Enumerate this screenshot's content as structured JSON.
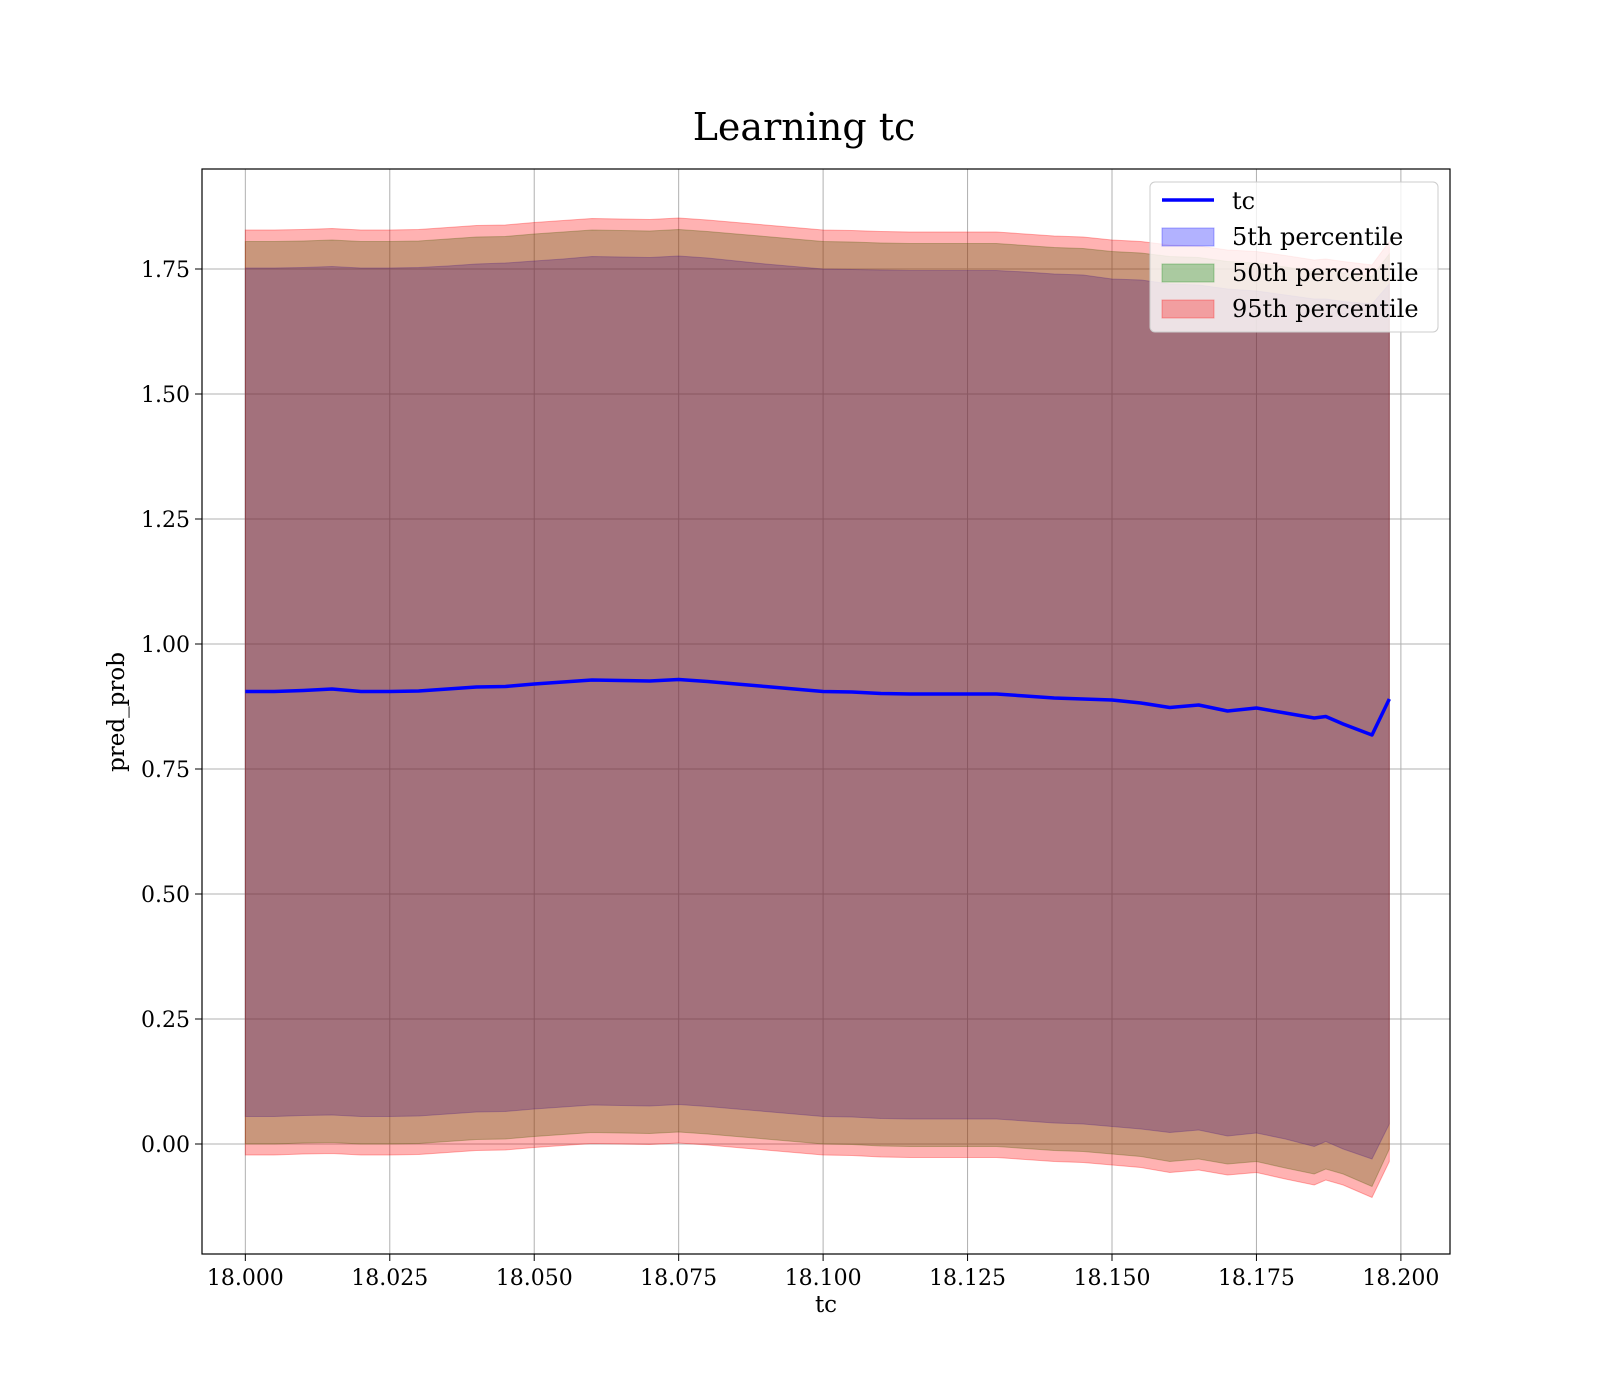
{
  "chart_data": {
    "type": "area",
    "title": "Learning tc",
    "xlabel": "tc",
    "ylabel": "pred_prob",
    "xlim": [
      17.9925,
      18.2085
    ],
    "ylim": [
      -0.22,
      1.95
    ],
    "x_ticks": [
      18.0,
      18.025,
      18.05,
      18.075,
      18.1,
      18.125,
      18.15,
      18.175,
      18.2
    ],
    "x_tick_labels": [
      "18.000",
      "18.025",
      "18.050",
      "18.075",
      "18.100",
      "18.125",
      "18.150",
      "18.175",
      "18.200"
    ],
    "y_ticks": [
      0.0,
      0.25,
      0.5,
      0.75,
      1.0,
      1.25,
      1.5,
      1.75
    ],
    "y_tick_labels": [
      "0.00",
      "0.25",
      "0.50",
      "0.75",
      "1.00",
      "1.25",
      "1.50",
      "1.75"
    ],
    "grid": true,
    "legend_position": "top-right",
    "x": [
      18.0,
      18.005,
      18.01,
      18.015,
      18.02,
      18.025,
      18.03,
      18.035,
      18.04,
      18.045,
      18.05,
      18.055,
      18.06,
      18.065,
      18.07,
      18.075,
      18.08,
      18.085,
      18.09,
      18.095,
      18.1,
      18.105,
      18.11,
      18.115,
      18.12,
      18.125,
      18.13,
      18.135,
      18.14,
      18.145,
      18.15,
      18.155,
      18.16,
      18.165,
      18.17,
      18.175,
      18.18,
      18.185,
      18.187,
      18.19,
      18.195,
      18.198
    ],
    "series": [
      {
        "name": "tc",
        "kind": "line",
        "color": "#0000ff",
        "values": [
          0.905,
          0.905,
          0.907,
          0.91,
          0.905,
          0.905,
          0.906,
          0.91,
          0.914,
          0.915,
          0.92,
          0.924,
          0.928,
          0.927,
          0.926,
          0.929,
          0.925,
          0.92,
          0.915,
          0.91,
          0.905,
          0.904,
          0.901,
          0.9,
          0.9,
          0.9,
          0.9,
          0.896,
          0.892,
          0.89,
          0.888,
          0.882,
          0.873,
          0.878,
          0.866,
          0.872,
          0.862,
          0.852,
          0.855,
          0.84,
          0.818,
          0.89
        ]
      },
      {
        "name": "5th percentile",
        "kind": "band",
        "color": "#0000ff",
        "lower": [
          0.055,
          0.055,
          0.057,
          0.058,
          0.055,
          0.055,
          0.056,
          0.06,
          0.064,
          0.065,
          0.07,
          0.074,
          0.078,
          0.077,
          0.076,
          0.079,
          0.075,
          0.07,
          0.065,
          0.06,
          0.055,
          0.054,
          0.051,
          0.05,
          0.05,
          0.05,
          0.05,
          0.046,
          0.042,
          0.04,
          0.035,
          0.03,
          0.023,
          0.028,
          0.016,
          0.022,
          0.01,
          -0.005,
          0.005,
          -0.01,
          -0.03,
          0.04
        ],
        "upper": [
          1.752,
          1.752,
          1.753,
          1.755,
          1.752,
          1.752,
          1.753,
          1.756,
          1.76,
          1.762,
          1.766,
          1.77,
          1.775,
          1.774,
          1.773,
          1.776,
          1.772,
          1.766,
          1.76,
          1.755,
          1.75,
          1.749,
          1.748,
          1.747,
          1.747,
          1.747,
          1.747,
          1.744,
          1.74,
          1.738,
          1.73,
          1.728,
          1.72,
          1.718,
          1.71,
          1.706,
          1.698,
          1.69,
          1.69,
          1.685,
          1.68,
          1.72
        ]
      },
      {
        "name": "50th percentile",
        "kind": "band",
        "color": "#008000",
        "lower": [
          0.0,
          0.0,
          0.002,
          0.003,
          0.0,
          0.0,
          0.001,
          0.005,
          0.009,
          0.01,
          0.015,
          0.019,
          0.023,
          0.022,
          0.021,
          0.024,
          0.02,
          0.015,
          0.01,
          0.005,
          0.0,
          -0.001,
          -0.004,
          -0.005,
          -0.005,
          -0.005,
          -0.005,
          -0.009,
          -0.013,
          -0.015,
          -0.02,
          -0.025,
          -0.035,
          -0.03,
          -0.04,
          -0.035,
          -0.048,
          -0.06,
          -0.05,
          -0.06,
          -0.085,
          -0.01
        ],
        "upper": [
          1.805,
          1.805,
          1.806,
          1.808,
          1.805,
          1.805,
          1.806,
          1.81,
          1.814,
          1.815,
          1.82,
          1.824,
          1.828,
          1.827,
          1.826,
          1.829,
          1.825,
          1.82,
          1.815,
          1.81,
          1.805,
          1.804,
          1.802,
          1.801,
          1.801,
          1.801,
          1.801,
          1.797,
          1.793,
          1.791,
          1.785,
          1.782,
          1.775,
          1.773,
          1.765,
          1.762,
          1.754,
          1.745,
          1.747,
          1.742,
          1.735,
          1.78
        ]
      },
      {
        "name": "95th percentile",
        "kind": "band",
        "color": "#ff0000",
        "lower": [
          -0.022,
          -0.022,
          -0.02,
          -0.019,
          -0.022,
          -0.022,
          -0.021,
          -0.017,
          -0.013,
          -0.012,
          -0.007,
          -0.003,
          0.001,
          0.0,
          -0.001,
          0.002,
          -0.002,
          -0.007,
          -0.012,
          -0.017,
          -0.022,
          -0.023,
          -0.026,
          -0.027,
          -0.027,
          -0.027,
          -0.027,
          -0.031,
          -0.035,
          -0.037,
          -0.042,
          -0.047,
          -0.057,
          -0.052,
          -0.062,
          -0.057,
          -0.07,
          -0.082,
          -0.072,
          -0.082,
          -0.107,
          -0.035
        ],
        "upper": [
          1.828,
          1.828,
          1.829,
          1.831,
          1.828,
          1.828,
          1.829,
          1.833,
          1.837,
          1.838,
          1.843,
          1.847,
          1.851,
          1.85,
          1.849,
          1.852,
          1.848,
          1.843,
          1.838,
          1.833,
          1.828,
          1.827,
          1.825,
          1.824,
          1.824,
          1.824,
          1.824,
          1.82,
          1.816,
          1.814,
          1.808,
          1.805,
          1.798,
          1.796,
          1.788,
          1.785,
          1.777,
          1.768,
          1.77,
          1.765,
          1.758,
          1.805
        ]
      }
    ]
  }
}
